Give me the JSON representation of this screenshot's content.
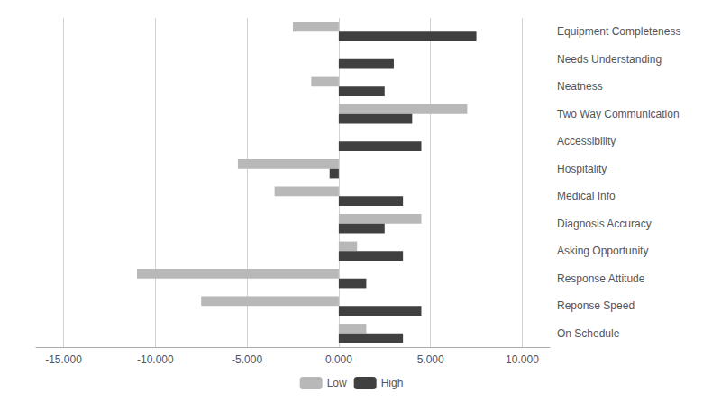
{
  "chart_data": {
    "type": "bar",
    "orientation": "horizontal",
    "categories": [
      "Equipment Completeness",
      "Needs Understanding",
      "Neatness",
      "Two Way Communication",
      "Accessibility",
      "Hospitality",
      "Medical Info",
      "Diagnosis Accuracy",
      "Asking Opportunity",
      "Response Attitude",
      "Reponse Speed",
      "On Schedule"
    ],
    "series": [
      {
        "name": "Low",
        "color": "#b8b8b8",
        "values": [
          -2.5,
          0.0,
          -1.5,
          7.0,
          0.0,
          -5.5,
          -3.5,
          4.5,
          1.0,
          -11.0,
          -7.5,
          1.5
        ]
      },
      {
        "name": "High",
        "color": "#404040",
        "values": [
          7.5,
          3.0,
          2.5,
          4.0,
          4.5,
          -0.5,
          3.5,
          2.5,
          3.5,
          1.5,
          4.5,
          3.5
        ]
      }
    ],
    "xlim": [
      -16.5,
      11.5
    ],
    "xticks": [
      {
        "value": -15,
        "label": "-15.000"
      },
      {
        "value": -10,
        "label": "-10.000"
      },
      {
        "value": -5,
        "label": "-5.000"
      },
      {
        "value": 0,
        "label": "0.000"
      },
      {
        "value": 5,
        "label": "5.000"
      },
      {
        "value": 10,
        "label": "10.000"
      }
    ],
    "grid": true,
    "legend": "bottom"
  }
}
